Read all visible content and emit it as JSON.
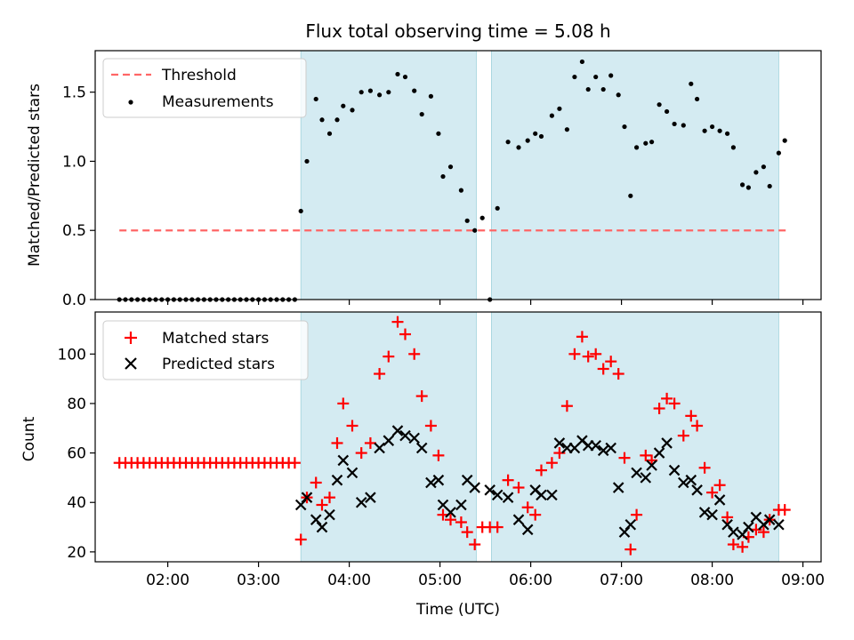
{
  "figure": {
    "title": "Flux total observing time = 5.08 h",
    "xlabel": "Time (UTC)"
  },
  "chart_data": [
    {
      "type": "scatter",
      "panel": "top",
      "ylabel": "Matched/Predicted stars",
      "xlim": [
        "01:12",
        "09:12"
      ],
      "ylim": [
        0,
        1.8
      ],
      "yticks": [
        "0.0",
        "0.5",
        "1.0",
        "1.5"
      ],
      "ytick_values": [
        0,
        0.5,
        1.0,
        1.5
      ],
      "xticks": [
        "02:00",
        "03:00",
        "04:00",
        "05:00",
        "06:00",
        "07:00",
        "08:00",
        "09:00"
      ],
      "grid": false,
      "legend_position": "top-left",
      "shaded_spans": [
        [
          "03:28",
          "05:24"
        ],
        [
          "05:34",
          "08:44"
        ]
      ],
      "shade_color": "#add8e6",
      "threshold": {
        "name": "Threshold",
        "value": 0.5,
        "x_start": "01:28",
        "x_end": "08:50",
        "color": "#ff6666"
      },
      "series": [
        {
          "name": "Measurements",
          "color": "#000000",
          "marker": "dot",
          "x": [
            "01:28",
            "01:32",
            "01:36",
            "01:40",
            "01:44",
            "01:48",
            "01:52",
            "01:56",
            "02:00",
            "02:04",
            "02:08",
            "02:12",
            "02:16",
            "02:20",
            "02:24",
            "02:28",
            "02:32",
            "02:36",
            "02:40",
            "02:44",
            "02:48",
            "02:52",
            "02:56",
            "03:00",
            "03:04",
            "03:08",
            "03:12",
            "03:16",
            "03:20",
            "03:24",
            "03:28",
            "03:32",
            "03:38",
            "03:42",
            "03:47",
            "03:52",
            "03:56",
            "04:02",
            "04:08",
            "04:14",
            "04:20",
            "04:26",
            "04:32",
            "04:37",
            "04:43",
            "04:48",
            "04:54",
            "04:59",
            "05:02",
            "05:07",
            "05:14",
            "05:18",
            "05:23",
            "05:28",
            "05:33",
            "05:38",
            "05:45",
            "05:52",
            "05:58",
            "06:03",
            "06:07",
            "06:14",
            "06:19",
            "06:24",
            "06:29",
            "06:34",
            "06:38",
            "06:43",
            "06:48",
            "06:53",
            "06:58",
            "07:02",
            "07:06",
            "07:10",
            "07:16",
            "07:20",
            "07:25",
            "07:30",
            "07:35",
            "07:41",
            "07:46",
            "07:50",
            "07:55",
            "08:00",
            "08:05",
            "08:10",
            "08:14",
            "08:20",
            "08:24",
            "08:29",
            "08:34",
            "08:38",
            "08:44",
            "08:48"
          ],
          "values": [
            0,
            0,
            0,
            0,
            0,
            0,
            0,
            0,
            0,
            0,
            0,
            0,
            0,
            0,
            0,
            0,
            0,
            0,
            0,
            0,
            0,
            0,
            0,
            0,
            0,
            0,
            0,
            0,
            0,
            0,
            0.64,
            1.0,
            1.45,
            1.3,
            1.2,
            1.3,
            1.4,
            1.37,
            1.5,
            1.51,
            1.48,
            1.5,
            1.63,
            1.61,
            1.51,
            1.34,
            1.47,
            1.2,
            0.89,
            0.96,
            0.79,
            0.57,
            0.5,
            0.59,
            0.0,
            0.66,
            1.14,
            1.1,
            1.15,
            1.2,
            1.18,
            1.33,
            1.38,
            1.23,
            1.61,
            1.72,
            1.52,
            1.61,
            1.52,
            1.62,
            1.48,
            1.25,
            0.75,
            1.1,
            1.13,
            1.14,
            1.41,
            1.36,
            1.27,
            1.26,
            1.56,
            1.45,
            1.22,
            1.25,
            1.22,
            1.2,
            1.1,
            0.83,
            0.81,
            0.92,
            0.96,
            0.82,
            1.06,
            1.15
          ]
        }
      ]
    },
    {
      "type": "scatter",
      "panel": "bottom",
      "ylabel": "Count",
      "xlim": [
        "01:12",
        "09:12"
      ],
      "ylim": [
        16,
        117
      ],
      "yticks": [
        "20",
        "40",
        "60",
        "80",
        "100"
      ],
      "ytick_values": [
        20,
        40,
        60,
        80,
        100
      ],
      "xticks": [
        "02:00",
        "03:00",
        "04:00",
        "05:00",
        "06:00",
        "07:00",
        "08:00",
        "09:00"
      ],
      "grid": false,
      "legend_position": "top-left",
      "shaded_spans": [
        [
          "03:28",
          "05:24"
        ],
        [
          "05:34",
          "08:44"
        ]
      ],
      "shade_color": "#add8e6",
      "series": [
        {
          "name": "Matched stars",
          "color": "#ff0000",
          "marker": "plus",
          "x": [
            "01:28",
            "01:32",
            "01:36",
            "01:40",
            "01:44",
            "01:48",
            "01:52",
            "01:56",
            "02:00",
            "02:04",
            "02:08",
            "02:12",
            "02:16",
            "02:20",
            "02:24",
            "02:28",
            "02:32",
            "02:36",
            "02:40",
            "02:44",
            "02:48",
            "02:52",
            "02:56",
            "03:00",
            "03:04",
            "03:08",
            "03:12",
            "03:16",
            "03:20",
            "03:24",
            "03:28",
            "03:32",
            "03:38",
            "03:42",
            "03:47",
            "03:52",
            "03:56",
            "04:02",
            "04:08",
            "04:14",
            "04:20",
            "04:26",
            "04:32",
            "04:37",
            "04:43",
            "04:48",
            "04:54",
            "04:59",
            "05:02",
            "05:07",
            "05:14",
            "05:18",
            "05:23",
            "05:28",
            "05:33",
            "05:38",
            "05:45",
            "05:52",
            "05:58",
            "06:03",
            "06:07",
            "06:14",
            "06:19",
            "06:24",
            "06:29",
            "06:34",
            "06:38",
            "06:43",
            "06:48",
            "06:53",
            "06:58",
            "07:02",
            "07:06",
            "07:10",
            "07:16",
            "07:20",
            "07:25",
            "07:30",
            "07:35",
            "07:41",
            "07:46",
            "07:50",
            "07:55",
            "08:00",
            "08:05",
            "08:10",
            "08:14",
            "08:20",
            "08:24",
            "08:29",
            "08:34",
            "08:38",
            "08:44",
            "08:48"
          ],
          "values": [
            56,
            56,
            56,
            56,
            56,
            56,
            56,
            56,
            56,
            56,
            56,
            56,
            56,
            56,
            56,
            56,
            56,
            56,
            56,
            56,
            56,
            56,
            56,
            56,
            56,
            56,
            56,
            56,
            56,
            56,
            25,
            42,
            48,
            39,
            42,
            64,
            80,
            71,
            60,
            64,
            92,
            99,
            113,
            108,
            100,
            83,
            71,
            59,
            35,
            33,
            32,
            28,
            23,
            30,
            30,
            30,
            49,
            46,
            38,
            35,
            53,
            56,
            60,
            79,
            100,
            107,
            99,
            100,
            94,
            97,
            92,
            58,
            21,
            35,
            59,
            57,
            78,
            82,
            80,
            67,
            75,
            71,
            54,
            44,
            47,
            34,
            23,
            22,
            26,
            29,
            28,
            33,
            37,
            37
          ]
        },
        {
          "name": "Predicted stars",
          "color": "#000000",
          "marker": "x",
          "x": [
            "03:28",
            "03:32",
            "03:38",
            "03:42",
            "03:47",
            "03:52",
            "03:56",
            "04:02",
            "04:08",
            "04:14",
            "04:20",
            "04:26",
            "04:32",
            "04:37",
            "04:43",
            "04:48",
            "04:54",
            "04:59",
            "05:02",
            "05:07",
            "05:14",
            "05:18",
            "05:23",
            "05:33",
            "05:38",
            "05:45",
            "05:52",
            "05:58",
            "06:03",
            "06:07",
            "06:14",
            "06:19",
            "06:24",
            "06:29",
            "06:34",
            "06:38",
            "06:43",
            "06:48",
            "06:53",
            "06:58",
            "07:02",
            "07:06",
            "07:10",
            "07:16",
            "07:20",
            "07:25",
            "07:30",
            "07:35",
            "07:41",
            "07:46",
            "07:50",
            "07:55",
            "08:00",
            "08:05",
            "08:10",
            "08:14",
            "08:20",
            "08:24",
            "08:29",
            "08:34",
            "08:38",
            "08:44"
          ],
          "values": [
            39,
            42,
            33,
            30,
            35,
            49,
            57,
            52,
            40,
            42,
            62,
            65,
            69,
            67,
            66,
            62,
            48,
            49,
            39,
            36,
            39,
            49,
            46,
            45,
            43,
            42,
            33,
            29,
            45,
            43,
            43,
            64,
            62,
            62,
            65,
            63,
            63,
            61,
            62,
            46,
            28,
            31,
            52,
            50,
            55,
            60,
            64,
            53,
            48,
            49,
            45,
            36,
            35,
            41,
            31,
            28,
            27,
            30,
            34,
            31,
            33,
            31
          ]
        }
      ]
    }
  ]
}
